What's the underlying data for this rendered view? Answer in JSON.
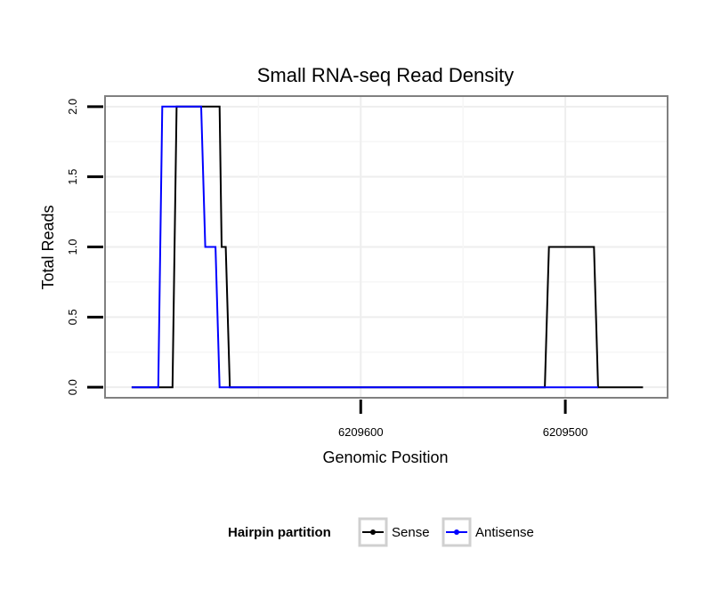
{
  "chart_data": {
    "type": "line",
    "title": "Small RNA-seq Read Density",
    "xlabel": "Genomic Position",
    "ylabel": "Total Reads",
    "x_reversed": true,
    "xlim": [
      6209725,
      6209450
    ],
    "ylim": [
      -0.075,
      2.075
    ],
    "xticks": [
      6209600,
      6209500
    ],
    "xtick_labels": [
      "6209600",
      "6209500"
    ],
    "yticks": [
      0.0,
      0.5,
      1.0,
      1.5,
      2.0
    ],
    "ytick_labels": [
      "0.0",
      "0.5",
      "1.0",
      "1.5",
      "2.0"
    ],
    "grid": true,
    "legend": {
      "title": "Hairpin partition",
      "position": "bottom",
      "entries": [
        "Sense",
        "Antisense"
      ]
    },
    "series": [
      {
        "name": "Sense",
        "color": "#000000",
        "x": [
          6209712,
          6209692,
          6209690,
          6209669,
          6209668,
          6209666,
          6209664,
          6209510,
          6209508,
          6209486,
          6209484,
          6209462
        ],
        "y": [
          0,
          0,
          2,
          2,
          1,
          1,
          0,
          0,
          1,
          1,
          0,
          0
        ]
      },
      {
        "name": "Antisense",
        "color": "#0000ff",
        "x": [
          6209712,
          6209699,
          6209697,
          6209678,
          6209676,
          6209671,
          6209669,
          6209484
        ],
        "y": [
          0,
          0,
          2,
          2,
          1,
          1,
          0,
          0
        ]
      }
    ]
  }
}
